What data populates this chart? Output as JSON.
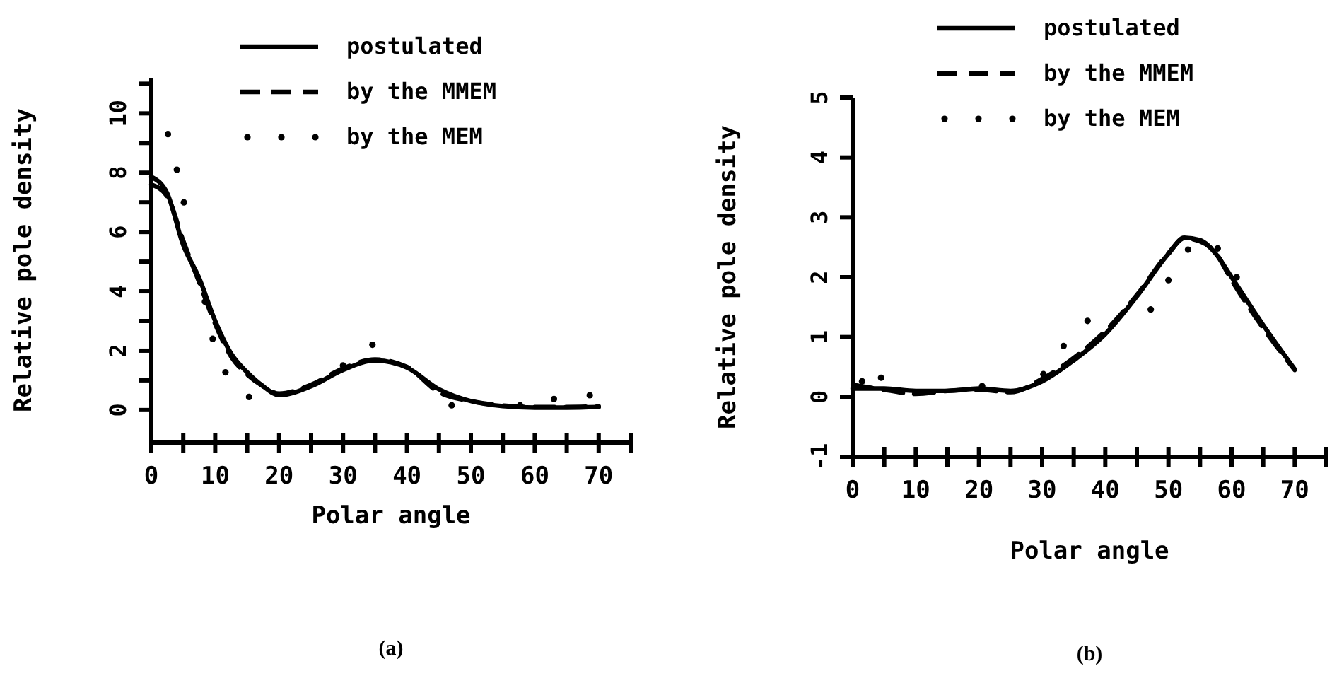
{
  "chart_data": [
    {
      "type": "line",
      "xlabel": "Polar angle",
      "ylabel": "Relative pole density",
      "legend": "top",
      "annotations": [
        "(a)"
      ],
      "xlim": [
        0,
        75
      ],
      "xticks": [
        0,
        {
          "value": 5,
          "label": null
        },
        10,
        {
          "value": 15,
          "label": null
        },
        20,
        {
          "value": 25,
          "label": null
        },
        30,
        {
          "value": 35,
          "label": null
        },
        40,
        {
          "value": 45,
          "label": null
        },
        50,
        {
          "value": 55,
          "label": null
        },
        60,
        {
          "value": 65,
          "label": null
        },
        70,
        {
          "value": 75,
          "label": null
        }
      ],
      "ylim": [
        -1.1,
        11.2
      ],
      "yticks": [
        0,
        {
          "value": 1,
          "label": null
        },
        2,
        {
          "value": 3,
          "label": null
        },
        4,
        {
          "value": 5,
          "label": null
        },
        6,
        {
          "value": 7,
          "label": null
        },
        8,
        {
          "value": 9,
          "label": null
        },
        10,
        {
          "value": 11,
          "label": null
        }
      ],
      "series": [
        {
          "name": "postulated",
          "color": "#000000",
          "line_style": "solid",
          "x": [
            0,
            2.5,
            5,
            7.5,
            10,
            12.5,
            15,
            17.5,
            20,
            25,
            30,
            35,
            40,
            45,
            50,
            55,
            60,
            65,
            70
          ],
          "values": [
            7.86,
            7.3,
            5.56,
            4.44,
            3.0,
            1.9,
            1.27,
            0.8,
            0.5,
            0.8,
            1.35,
            1.67,
            1.43,
            0.7,
            0.3,
            0.13,
            0.08,
            0.08,
            0.1
          ]
        },
        {
          "name": "by the MMEM",
          "color": "#000000",
          "line_style": "dashed",
          "x": [
            0,
            2.5,
            5,
            7.5,
            10,
            12.5,
            15,
            17.5,
            20,
            25,
            30,
            35,
            40,
            45,
            50,
            55,
            60,
            65,
            70
          ],
          "values": [
            7.6,
            7.2,
            5.7,
            4.3,
            2.9,
            1.8,
            1.2,
            0.8,
            0.55,
            0.85,
            1.4,
            1.7,
            1.45,
            0.6,
            0.3,
            0.15,
            0.1,
            0.1,
            0.12
          ]
        },
        {
          "name": "by the MEM",
          "color": "#000000",
          "type": "scatter",
          "marker": "circle",
          "x": [
            2.6,
            4,
            5.1,
            8.4,
            9.6,
            11.6,
            15.3,
            30,
            34.6,
            47,
            57.7,
            63,
            68.6
          ],
          "values": [
            9.3,
            8.1,
            7.0,
            3.65,
            2.4,
            1.27,
            0.44,
            1.5,
            2.2,
            0.16,
            0.16,
            0.37,
            0.5
          ]
        }
      ]
    },
    {
      "type": "line",
      "xlabel": "Polar angle",
      "ylabel": "Relative pole density",
      "legend": "top",
      "annotations": [
        "(b)"
      ],
      "xlim": [
        0,
        75
      ],
      "xticks": [
        0,
        {
          "value": 5,
          "label": null
        },
        10,
        {
          "value": 15,
          "label": null
        },
        20,
        {
          "value": 25,
          "label": null
        },
        30,
        {
          "value": 35,
          "label": null
        },
        40,
        {
          "value": 45,
          "label": null
        },
        50,
        {
          "value": 55,
          "label": null
        },
        60,
        {
          "value": 65,
          "label": null
        },
        70,
        {
          "value": 75,
          "label": null
        }
      ],
      "ylim": [
        -1,
        5
      ],
      "yticks": [
        -1,
        0,
        1,
        2,
        3,
        4,
        5
      ],
      "series": [
        {
          "name": "postulated",
          "color": "#000000",
          "line_style": "solid",
          "x": [
            0,
            5,
            10,
            15,
            20,
            25,
            30,
            35,
            40,
            45,
            50,
            52.5,
            55,
            57.5,
            60,
            65,
            70
          ],
          "values": [
            0.14,
            0.14,
            0.1,
            0.1,
            0.14,
            0.1,
            0.26,
            0.61,
            1.05,
            1.68,
            2.39,
            2.66,
            2.62,
            2.39,
            2.0,
            1.2,
            0.46
          ]
        },
        {
          "name": "by the MMEM",
          "color": "#000000",
          "line_style": "dashed",
          "x": [
            0,
            5,
            10,
            15,
            20,
            25,
            30,
            35,
            40,
            45,
            50,
            52.5,
            55,
            57.5,
            60,
            65,
            70
          ],
          "values": [
            0.2,
            0.12,
            0.05,
            0.1,
            0.12,
            0.08,
            0.3,
            0.65,
            1.1,
            1.7,
            2.4,
            2.65,
            2.6,
            2.4,
            1.95,
            1.15,
            0.45
          ]
        },
        {
          "name": "by the MEM",
          "color": "#000000",
          "type": "scatter",
          "marker": "circle",
          "x": [
            1.5,
            4.5,
            20.5,
            30.2,
            33.4,
            37.2,
            47.2,
            50,
            53.1,
            57.8,
            60.8
          ],
          "values": [
            0.26,
            0.32,
            0.18,
            0.38,
            0.85,
            1.27,
            1.46,
            1.95,
            2.46,
            2.48,
            2.0
          ]
        }
      ]
    }
  ]
}
